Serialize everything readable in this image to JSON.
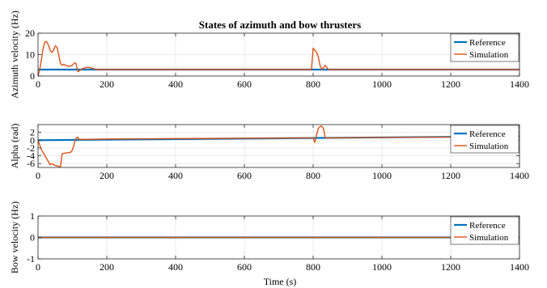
{
  "figure": {
    "title": "States of azimuth and bow thrusters",
    "xlabel": "Time (s)"
  },
  "colors": {
    "reference": "#0072BD",
    "simulation": "#D95319",
    "grid": "#e6e6e6",
    "axis": "#262626"
  },
  "legend": {
    "reference": "Reference",
    "simulation": "Simulation",
    "position": "top-right"
  },
  "chart_data": [
    {
      "type": "line",
      "title": "States of azimuth and bow thrusters",
      "xlabel": "",
      "ylabel": "Azimuth velocity (Hz)",
      "xlim": [
        0,
        1400
      ],
      "ylim": [
        0,
        20
      ],
      "xticks": [
        0,
        200,
        400,
        600,
        800,
        1000,
        1200,
        1400
      ],
      "xtick_labels": [
        "0",
        "200",
        "400",
        "600",
        "800",
        "1000",
        "1200",
        "1400"
      ],
      "yticks": [
        0,
        10,
        20
      ],
      "ytick_labels": [
        "0",
        "10",
        "20"
      ],
      "grid": true,
      "legend": "top-right",
      "series": [
        {
          "name": "Reference",
          "x": [
            0,
            1400
          ],
          "y": [
            3,
            3
          ]
        },
        {
          "name": "Simulation",
          "x": [
            0,
            5,
            10,
            15,
            20,
            25,
            30,
            35,
            40,
            45,
            50,
            55,
            60,
            65,
            70,
            75,
            80,
            90,
            100,
            105,
            110,
            113,
            116,
            120,
            130,
            140,
            150,
            160,
            170,
            180,
            200,
            400,
            600,
            795,
            800,
            805,
            810,
            815,
            820,
            825,
            830,
            835,
            840,
            845,
            850,
            855,
            860,
            900,
            1000,
            1200,
            1400
          ],
          "y": [
            0,
            3,
            8,
            13,
            16,
            16,
            14.5,
            12,
            11,
            12,
            14,
            13.5,
            10,
            6,
            5,
            5.5,
            5,
            4.5,
            5,
            6,
            6,
            4,
            2,
            2.5,
            3.5,
            4,
            4,
            3.5,
            3,
            3,
            3,
            3,
            3,
            3,
            13,
            12,
            11,
            9,
            5,
            3,
            4,
            5,
            4,
            3,
            3,
            3,
            3,
            3,
            3,
            3,
            3
          ]
        }
      ]
    },
    {
      "type": "line",
      "xlabel": "",
      "ylabel": "Alpha (rad)",
      "xlim": [
        0,
        1400
      ],
      "ylim": [
        -7,
        4
      ],
      "xticks": [
        0,
        200,
        400,
        600,
        800,
        1000,
        1200,
        1400
      ],
      "xtick_labels": [
        "0",
        "200",
        "400",
        "600",
        "800",
        "1000",
        "1200",
        "1400"
      ],
      "yticks": [
        -6,
        -4,
        -2,
        0,
        2
      ],
      "ytick_labels": [
        "-6",
        "-4",
        "-2",
        "0",
        "2"
      ],
      "grid": true,
      "legend": "top-right",
      "series": [
        {
          "name": "Reference",
          "x": [
            0,
            1400
          ],
          "y": [
            0,
            1
          ]
        },
        {
          "name": "Simulation",
          "x": [
            0,
            10,
            20,
            30,
            35,
            40,
            50,
            60,
            65,
            70,
            80,
            90,
            95,
            100,
            110,
            115,
            120,
            140,
            200,
            400,
            600,
            800,
            805,
            810,
            815,
            820,
            825,
            830,
            835,
            840,
            845,
            1000,
            1200,
            1400
          ],
          "y": [
            0,
            -2.5,
            -4,
            -5.5,
            -6.3,
            -6,
            -6.5,
            -6.7,
            -6.9,
            -3.5,
            -3.3,
            -3.2,
            -3.1,
            -2.5,
            0.5,
            0.8,
            0.2,
            0.2,
            0.3,
            0.4,
            0.5,
            0.6,
            -0.6,
            1.5,
            3,
            3.5,
            3.6,
            3,
            0.6,
            0.6,
            0.6,
            0.7,
            0.8,
            0.9
          ]
        }
      ]
    },
    {
      "type": "line",
      "xlabel": "Time (s)",
      "ylabel": "Bow velocity (Hz)",
      "xlim": [
        0,
        1400
      ],
      "ylim": [
        -1,
        1
      ],
      "xticks": [
        0,
        200,
        400,
        600,
        800,
        1000,
        1200,
        1400
      ],
      "xtick_labels": [
        "0",
        "200",
        "400",
        "600",
        "800",
        "1000",
        "1200",
        "1400"
      ],
      "yticks": [
        -1,
        0,
        1
      ],
      "ytick_labels": [
        "-1",
        "0",
        "1"
      ],
      "grid": true,
      "legend": "top-right",
      "series": [
        {
          "name": "Reference",
          "x": [
            0,
            1400
          ],
          "y": [
            0,
            0
          ]
        },
        {
          "name": "Simulation",
          "x": [
            0,
            1400
          ],
          "y": [
            0,
            0
          ]
        }
      ]
    }
  ]
}
